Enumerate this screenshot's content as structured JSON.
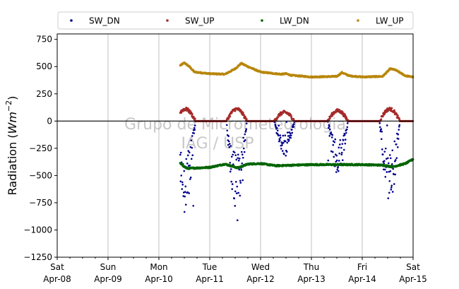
{
  "chart_data": {
    "type": "scatter",
    "title": "",
    "ylabel_prefix": "Radiation (",
    "ylabel_math": "Wm",
    "ylabel_exp": "−2",
    "ylabel_suffix": ")",
    "ylim": [
      -1250,
      800
    ],
    "yticks": [
      -1250,
      -1000,
      -750,
      -500,
      -250,
      0,
      250,
      500,
      750
    ],
    "ytick_labels": [
      "−1250",
      "−1000",
      "−750",
      "−500",
      "−250",
      "0",
      "250",
      "500",
      "750"
    ],
    "xlim_days": [
      0,
      7
    ],
    "x_major": [
      {
        "day": 0,
        "weekday": "Sat",
        "date": "Apr-08"
      },
      {
        "day": 1,
        "weekday": "Sun",
        "date": "Apr-09"
      },
      {
        "day": 2,
        "weekday": "Mon",
        "date": "Apr-10"
      },
      {
        "day": 3,
        "weekday": "Tue",
        "date": "Apr-11"
      },
      {
        "day": 4,
        "weekday": "Wed",
        "date": "Apr-12"
      },
      {
        "day": 5,
        "weekday": "Thu",
        "date": "Apr-13"
      },
      {
        "day": 6,
        "weekday": "Fri",
        "date": "Apr-14"
      },
      {
        "day": 7,
        "weekday": "Sat",
        "date": "Apr-15"
      }
    ],
    "grid": "vertical",
    "zero_line": true,
    "legend_position": "top",
    "watermark": [
      "Grupo de Micrometeorologia",
      "IAG / USP"
    ],
    "series": [
      {
        "name": "SW_DN",
        "color": "#00008b"
      },
      {
        "name": "SW_UP",
        "color": "#a52a2a"
      },
      {
        "name": "LW_DN",
        "color": "#006400"
      },
      {
        "name": "LW_UP",
        "color": "#b8860b"
      }
    ],
    "data_start_day": 2.42,
    "data_end_day": 7.0,
    "lw_up_profile": [
      [
        2.42,
        510
      ],
      [
        2.5,
        535
      ],
      [
        2.6,
        500
      ],
      [
        2.7,
        450
      ],
      [
        3.0,
        435
      ],
      [
        3.3,
        430
      ],
      [
        3.5,
        480
      ],
      [
        3.62,
        530
      ],
      [
        3.75,
        500
      ],
      [
        4.0,
        450
      ],
      [
        4.4,
        430
      ],
      [
        4.5,
        435
      ],
      [
        4.6,
        420
      ],
      [
        5.0,
        405
      ],
      [
        5.5,
        410
      ],
      [
        5.6,
        445
      ],
      [
        5.75,
        415
      ],
      [
        6.0,
        405
      ],
      [
        6.4,
        410
      ],
      [
        6.55,
        480
      ],
      [
        6.65,
        470
      ],
      [
        6.85,
        415
      ],
      [
        7.0,
        405
      ]
    ],
    "lw_dn_profile": [
      [
        2.42,
        -390
      ],
      [
        2.55,
        -435
      ],
      [
        3.0,
        -425
      ],
      [
        3.3,
        -395
      ],
      [
        3.55,
        -430
      ],
      [
        3.75,
        -395
      ],
      [
        4.0,
        -390
      ],
      [
        4.3,
        -410
      ],
      [
        5.0,
        -400
      ],
      [
        5.5,
        -400
      ],
      [
        6.0,
        -400
      ],
      [
        6.4,
        -405
      ],
      [
        6.6,
        -420
      ],
      [
        6.85,
        -390
      ],
      [
        7.0,
        -350
      ]
    ],
    "sw_days": [
      {
        "center": 2.52,
        "amp": 810
      },
      {
        "center": 3.53,
        "amp": 840
      },
      {
        "center": 4.47,
        "amp": 330
      },
      {
        "center": 5.52,
        "amp": 520
      },
      {
        "center": 6.54,
        "amp": 760
      }
    ]
  }
}
